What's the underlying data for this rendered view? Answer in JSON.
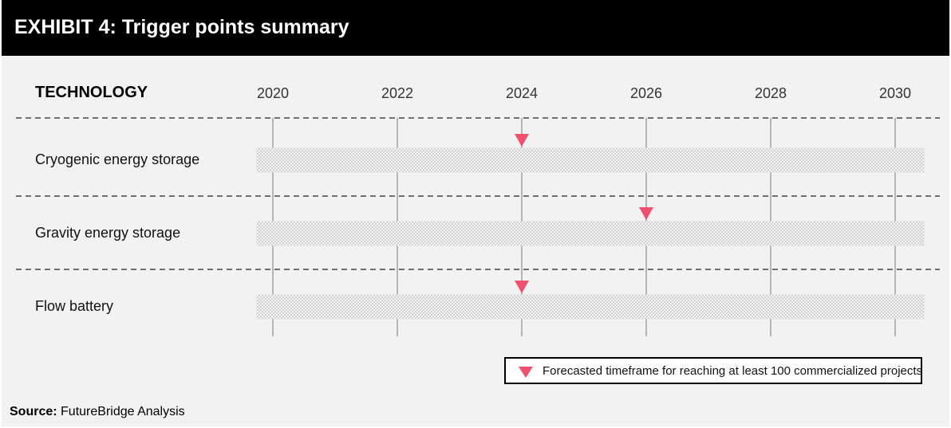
{
  "exhibit": {
    "title": "EXHIBIT 4: Trigger points summary"
  },
  "chart_data": {
    "type": "timeline",
    "title": "EXHIBIT 4: Trigger points summary",
    "row_header": "TECHNOLOGY",
    "x_ticks": [
      2020,
      2022,
      2024,
      2026,
      2028,
      2030
    ],
    "xlim": [
      2020,
      2030
    ],
    "grid": true,
    "rows": [
      {
        "label": "Cryogenic energy storage",
        "trigger_year": 2024
      },
      {
        "label": "Gravity energy storage",
        "trigger_year": 2026
      },
      {
        "label": "Flow battery",
        "trigger_year": 2024
      }
    ],
    "legend": {
      "label": "Forecasted timeframe for reaching at least 100 commercialized projects",
      "placement": "bottom-right"
    }
  },
  "source": {
    "label": "Source:",
    "text": "FutureBridge Analysis"
  },
  "colors": {
    "marker": "#f0506e",
    "grid": "#b5b5b5",
    "bar_checker": "#cfcfcf"
  }
}
